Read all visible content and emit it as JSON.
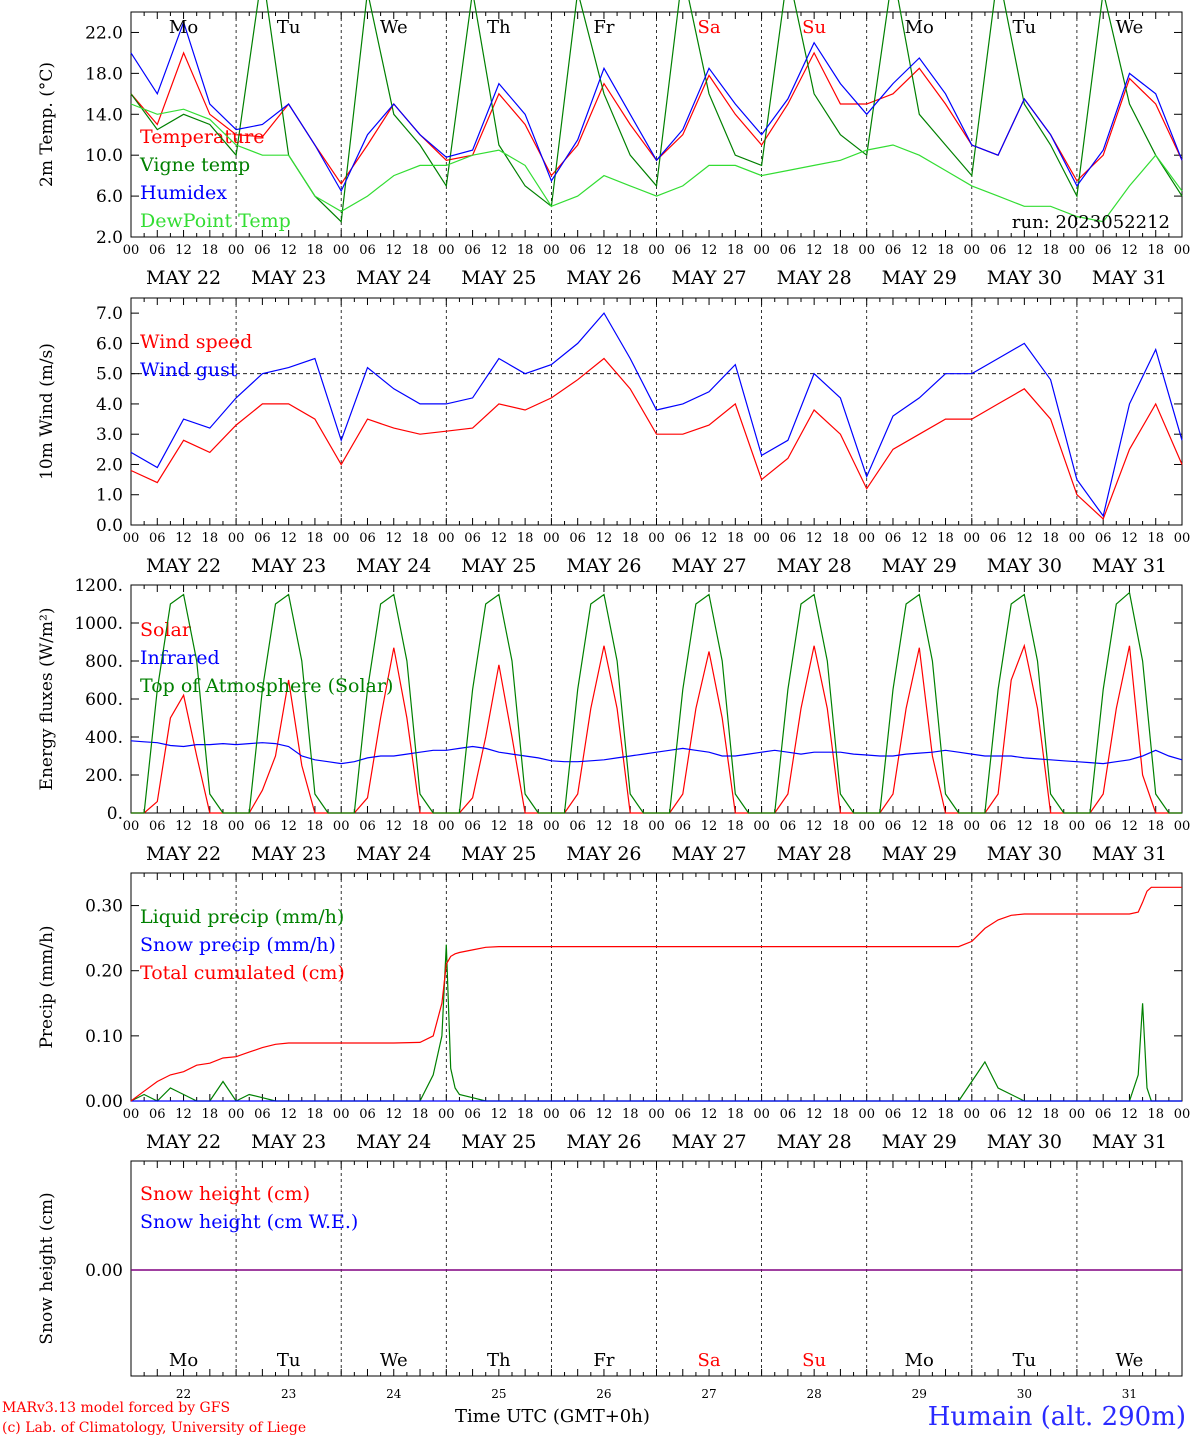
{
  "footer": {
    "credit_line1": "MARv3.13 model forced by GFS",
    "credit_line2": "(c) Lab. of Climatology, University of Liege",
    "xaxis_title": "Time UTC (GMT+0h)",
    "station": "Humain (alt. 290m)"
  },
  "days": {
    "labels": [
      "Mo",
      "Tu",
      "We",
      "Th",
      "Fr",
      "Sa",
      "Su",
      "Mo",
      "Tu",
      "We"
    ],
    "colors": [
      "#000000",
      "#000000",
      "#000000",
      "#000000",
      "#000000",
      "#ff0000",
      "#ff0000",
      "#000000",
      "#000000",
      "#000000"
    ],
    "dates": [
      "MAY 22",
      "MAY 23",
      "MAY 24",
      "MAY 25",
      "MAY 26",
      "MAY 27",
      "MAY 28",
      "MAY 29",
      "MAY 30",
      "MAY 31"
    ],
    "day_numbers": [
      "22",
      "23",
      "24",
      "25",
      "26",
      "27",
      "28",
      "29",
      "30",
      "31"
    ],
    "hour_labels": [
      "00",
      "06",
      "12",
      "18"
    ],
    "final_hour_label": "00"
  },
  "colors": {
    "red": "#ff0000",
    "green": "#008000",
    "blue": "#0000ff",
    "lightgreen": "#33dd33",
    "purple": "#800080"
  },
  "chart_data": [
    {
      "type": "line",
      "ylabel": "2m Temp. (°C)",
      "ylim": [
        2.0,
        24.0
      ],
      "yticks": [
        "2.0",
        "6.0",
        "10.0",
        "14.0",
        "18.0",
        "22.0"
      ],
      "annotation": "run: 2023052212",
      "x_hours": [
        0,
        6,
        12,
        18,
        24,
        30,
        36,
        42,
        48,
        54,
        60,
        66,
        72,
        78,
        84,
        90,
        96,
        102,
        108,
        114,
        120,
        126,
        132,
        138,
        144,
        150,
        156,
        162,
        168,
        174,
        180,
        186,
        192,
        198,
        204,
        210,
        216,
        222,
        228,
        234,
        240
      ],
      "series": [
        {
          "name": "Temperature",
          "color": "#ff0000",
          "values": [
            16.0,
            13.0,
            20.0,
            14.0,
            12.0,
            11.8,
            15.0,
            11.0,
            7.2,
            11.0,
            15.0,
            12.0,
            9.5,
            10.0,
            16.0,
            13.0,
            8.0,
            11.0,
            17.0,
            13.0,
            9.5,
            12.0,
            17.8,
            14.0,
            11.0,
            15.0,
            20.0,
            15.0,
            15.0,
            16.0,
            18.5,
            15.0,
            11.0,
            10.0,
            15.5,
            12.0,
            7.5,
            10.0,
            17.5,
            15.0,
            9.5
          ]
        },
        {
          "name": "Vigne temp",
          "color": "#008000",
          "values": [
            16.0,
            12.5,
            14.0,
            13.0,
            10.0,
            28.0,
            10.0,
            6.0,
            3.5,
            26.0,
            14.0,
            11.0,
            7.0,
            26.0,
            11.0,
            7.0,
            5.0,
            26.0,
            16.0,
            10.0,
            7.0,
            28.0,
            16.0,
            10.0,
            9.0,
            28.0,
            16.0,
            12.0,
            10.0,
            28.0,
            14.0,
            11.0,
            8.0,
            28.0,
            15.0,
            11.0,
            6.0,
            26.0,
            15.0,
            10.0,
            6.0
          ]
        },
        {
          "name": "Humidex",
          "color": "#0000ff",
          "values": [
            20.0,
            16.0,
            23.0,
            15.0,
            12.5,
            13.0,
            15.0,
            11.0,
            6.5,
            12.0,
            15.0,
            12.0,
            9.8,
            10.5,
            17.0,
            14.0,
            7.5,
            11.5,
            18.5,
            14.0,
            9.5,
            12.5,
            18.5,
            15.0,
            12.0,
            15.5,
            21.0,
            17.0,
            14.0,
            17.0,
            19.5,
            16.0,
            11.0,
            10.0,
            15.5,
            12.0,
            7.0,
            10.5,
            18.0,
            16.0,
            9.5
          ]
        },
        {
          "name": "DewPoint Temp",
          "color": "#33dd33",
          "values": [
            15.0,
            14.0,
            14.5,
            13.5,
            11.0,
            10.0,
            10.0,
            6.0,
            4.5,
            6.0,
            8.0,
            9.0,
            9.0,
            10.0,
            10.5,
            9.0,
            5.0,
            6.0,
            8.0,
            7.0,
            6.0,
            7.0,
            9.0,
            9.0,
            8.0,
            8.5,
            9.0,
            9.5,
            10.5,
            11.0,
            10.0,
            8.5,
            7.0,
            6.0,
            5.0,
            5.0,
            4.0,
            3.5,
            7.0,
            10.0,
            6.5
          ]
        }
      ]
    },
    {
      "type": "line",
      "ylabel": "10m Wind (m/s)",
      "ylim": [
        0.0,
        7.5
      ],
      "yticks": [
        "0.0",
        "1.0",
        "2.0",
        "3.0",
        "4.0",
        "5.0",
        "6.0",
        "7.0"
      ],
      "reference_line": 5.0,
      "x_hours": [
        0,
        6,
        12,
        18,
        24,
        30,
        36,
        42,
        48,
        54,
        60,
        66,
        72,
        78,
        84,
        90,
        96,
        102,
        108,
        114,
        120,
        126,
        132,
        138,
        144,
        150,
        156,
        162,
        168,
        174,
        180,
        186,
        192,
        198,
        204,
        210,
        216,
        222,
        228,
        234,
        240
      ],
      "series": [
        {
          "name": "Wind speed",
          "color": "#ff0000",
          "values": [
            1.8,
            1.4,
            2.8,
            2.4,
            3.3,
            4.0,
            4.0,
            3.5,
            2.0,
            3.5,
            3.2,
            3.0,
            3.1,
            3.2,
            4.0,
            3.8,
            4.2,
            4.8,
            5.5,
            4.5,
            3.0,
            3.0,
            3.3,
            4.0,
            1.5,
            2.2,
            3.8,
            3.0,
            1.2,
            2.5,
            3.0,
            3.5,
            3.5,
            4.0,
            4.5,
            3.5,
            1.0,
            0.2,
            2.5,
            4.0,
            2.0
          ]
        },
        {
          "name": "Wind gust",
          "color": "#0000ff",
          "values": [
            2.4,
            1.9,
            3.5,
            3.2,
            4.2,
            5.0,
            5.2,
            5.5,
            2.8,
            5.2,
            4.5,
            4.0,
            4.0,
            4.2,
            5.5,
            5.0,
            5.3,
            6.0,
            7.0,
            5.5,
            3.8,
            4.0,
            4.4,
            5.3,
            2.3,
            2.8,
            5.0,
            4.2,
            1.6,
            3.6,
            4.2,
            5.0,
            5.0,
            5.5,
            6.0,
            4.8,
            1.5,
            0.3,
            4.0,
            5.8,
            2.8
          ]
        }
      ]
    },
    {
      "type": "line",
      "ylabel": "Energy fluxes (W/m²)",
      "ylim": [
        0,
        1200
      ],
      "yticks": [
        "0.",
        "200.",
        "400.",
        "600.",
        "800.",
        "1000.",
        "1200."
      ],
      "x_hours": [
        0,
        3,
        6,
        9,
        12,
        15,
        18,
        21,
        24,
        27,
        30,
        33,
        36,
        39,
        42,
        45,
        48,
        51,
        54,
        57,
        60,
        63,
        66,
        69,
        72,
        75,
        78,
        81,
        84,
        87,
        90,
        93,
        96,
        99,
        102,
        105,
        108,
        111,
        114,
        117,
        120,
        123,
        126,
        129,
        132,
        135,
        138,
        141,
        144,
        147,
        150,
        153,
        156,
        159,
        162,
        165,
        168,
        171,
        174,
        177,
        180,
        183,
        186,
        189,
        192,
        195,
        198,
        201,
        204,
        207,
        210,
        213,
        216,
        219,
        222,
        225,
        228,
        231,
        234,
        237,
        240
      ],
      "series": [
        {
          "name": "Solar",
          "color": "#ff0000",
          "values": [
            0,
            0,
            60,
            500,
            620,
            300,
            0,
            0,
            0,
            0,
            120,
            300,
            700,
            250,
            0,
            0,
            0,
            0,
            80,
            500,
            870,
            500,
            0,
            0,
            0,
            0,
            80,
            400,
            780,
            400,
            0,
            0,
            0,
            0,
            100,
            550,
            880,
            550,
            0,
            0,
            0,
            0,
            100,
            550,
            850,
            500,
            0,
            0,
            0,
            0,
            100,
            550,
            880,
            550,
            0,
            0,
            0,
            0,
            100,
            550,
            870,
            300,
            0,
            0,
            0,
            0,
            100,
            700,
            880,
            550,
            0,
            0,
            0,
            0,
            100,
            550,
            880,
            200,
            0,
            0,
            0
          ]
        },
        {
          "name": "Infrared",
          "color": "#0000ff",
          "values": [
            380,
            375,
            370,
            355,
            350,
            360,
            360,
            365,
            360,
            365,
            370,
            365,
            350,
            300,
            280,
            270,
            260,
            270,
            290,
            300,
            300,
            310,
            320,
            330,
            330,
            340,
            350,
            340,
            320,
            310,
            300,
            290,
            275,
            270,
            270,
            275,
            280,
            290,
            300,
            310,
            320,
            330,
            340,
            330,
            320,
            300,
            300,
            310,
            320,
            330,
            320,
            310,
            320,
            320,
            320,
            310,
            305,
            300,
            300,
            310,
            315,
            320,
            330,
            320,
            310,
            300,
            300,
            300,
            290,
            285,
            280,
            275,
            270,
            265,
            260,
            270,
            280,
            300,
            330,
            300,
            280
          ]
        },
        {
          "name": "Top of Atmosphere (Solar)",
          "color": "#008000",
          "values": [
            0,
            0,
            650,
            1100,
            1150,
            800,
            100,
            0,
            0,
            0,
            650,
            1100,
            1150,
            800,
            100,
            0,
            0,
            0,
            650,
            1100,
            1150,
            800,
            100,
            0,
            0,
            0,
            650,
            1100,
            1150,
            800,
            100,
            0,
            0,
            0,
            650,
            1100,
            1150,
            800,
            100,
            0,
            0,
            0,
            650,
            1100,
            1150,
            800,
            100,
            0,
            0,
            0,
            650,
            1100,
            1150,
            800,
            100,
            0,
            0,
            0,
            650,
            1100,
            1150,
            800,
            100,
            0,
            0,
            0,
            650,
            1100,
            1150,
            800,
            100,
            0,
            0,
            0,
            650,
            1100,
            1160,
            800,
            100,
            0,
            0
          ]
        }
      ]
    },
    {
      "type": "line",
      "ylabel": "Precip (mm/h)",
      "ylim": [
        0.0,
        0.35
      ],
      "yticks": [
        "0.00",
        "0.10",
        "0.20",
        "0.30"
      ],
      "x_hours": [
        0,
        3,
        6,
        9,
        12,
        15,
        18,
        21,
        24,
        27,
        30,
        33,
        36,
        42,
        48,
        54,
        60,
        66,
        69,
        71,
        72,
        73,
        74,
        75,
        78,
        81,
        84,
        90,
        96,
        108,
        120,
        132,
        144,
        156,
        168,
        180,
        189,
        192,
        195,
        198,
        201,
        204,
        210,
        216,
        222,
        228,
        230,
        231,
        232,
        233,
        234,
        240
      ],
      "series": [
        {
          "name": "Liquid precip (mm/h)",
          "color": "#008000",
          "values": [
            0.0,
            0.01,
            0.0,
            0.02,
            0.01,
            0.0,
            0.0,
            0.03,
            0.0,
            0.01,
            0.005,
            0.0,
            0.0,
            0.0,
            0.0,
            0.0,
            0.0,
            0.0,
            0.04,
            0.1,
            0.24,
            0.05,
            0.02,
            0.01,
            0.005,
            0.0,
            0.0,
            0.0,
            0.0,
            0.0,
            0.0,
            0.0,
            0.0,
            0.0,
            0.0,
            0.0,
            0.0,
            0.03,
            0.06,
            0.02,
            0.01,
            0.0,
            0.0,
            0.0,
            0.0,
            0.0,
            0.04,
            0.15,
            0.02,
            0.0,
            0.0,
            0.0
          ]
        },
        {
          "name": "Snow precip (mm/h)",
          "color": "#0000ff",
          "values": [
            0.0,
            0.0,
            0.0,
            0.0,
            0.0,
            0.0,
            0.0,
            0.0,
            0.0,
            0.0,
            0.0,
            0.0,
            0.0,
            0.0,
            0.0,
            0.0,
            0.0,
            0.0,
            0.0,
            0.0,
            0.0,
            0.0,
            0.0,
            0.0,
            0.0,
            0.0,
            0.0,
            0.0,
            0.0,
            0.0,
            0.0,
            0.0,
            0.0,
            0.0,
            0.0,
            0.0,
            0.0,
            0.0,
            0.0,
            0.0,
            0.0,
            0.0,
            0.0,
            0.0,
            0.0,
            0.0,
            0.0,
            0.0,
            0.0,
            0.0,
            0.0,
            0.0
          ]
        },
        {
          "name": "Total cumulated (cm)",
          "color": "#ff0000",
          "values": [
            0.0,
            0.015,
            0.03,
            0.04,
            0.045,
            0.055,
            0.058,
            0.066,
            0.068,
            0.075,
            0.082,
            0.087,
            0.089,
            0.089,
            0.089,
            0.089,
            0.089,
            0.09,
            0.1,
            0.15,
            0.21,
            0.222,
            0.226,
            0.228,
            0.232,
            0.236,
            0.237,
            0.237,
            0.237,
            0.237,
            0.237,
            0.237,
            0.237,
            0.237,
            0.237,
            0.237,
            0.237,
            0.245,
            0.265,
            0.278,
            0.285,
            0.287,
            0.287,
            0.287,
            0.287,
            0.287,
            0.29,
            0.305,
            0.322,
            0.328,
            0.328,
            0.328
          ]
        }
      ]
    },
    {
      "type": "line",
      "ylabel": "Snow height (cm)",
      "yticks": [
        "0.00"
      ],
      "x_hours": [
        0,
        240
      ],
      "series": [
        {
          "name": "Snow height (cm)",
          "color": "#ff0000",
          "values": [
            0.0,
            0.0
          ]
        },
        {
          "name": "Snow height (cm W.E.)",
          "color": "#0000ff",
          "values": [
            0.0,
            0.0
          ]
        }
      ]
    }
  ]
}
